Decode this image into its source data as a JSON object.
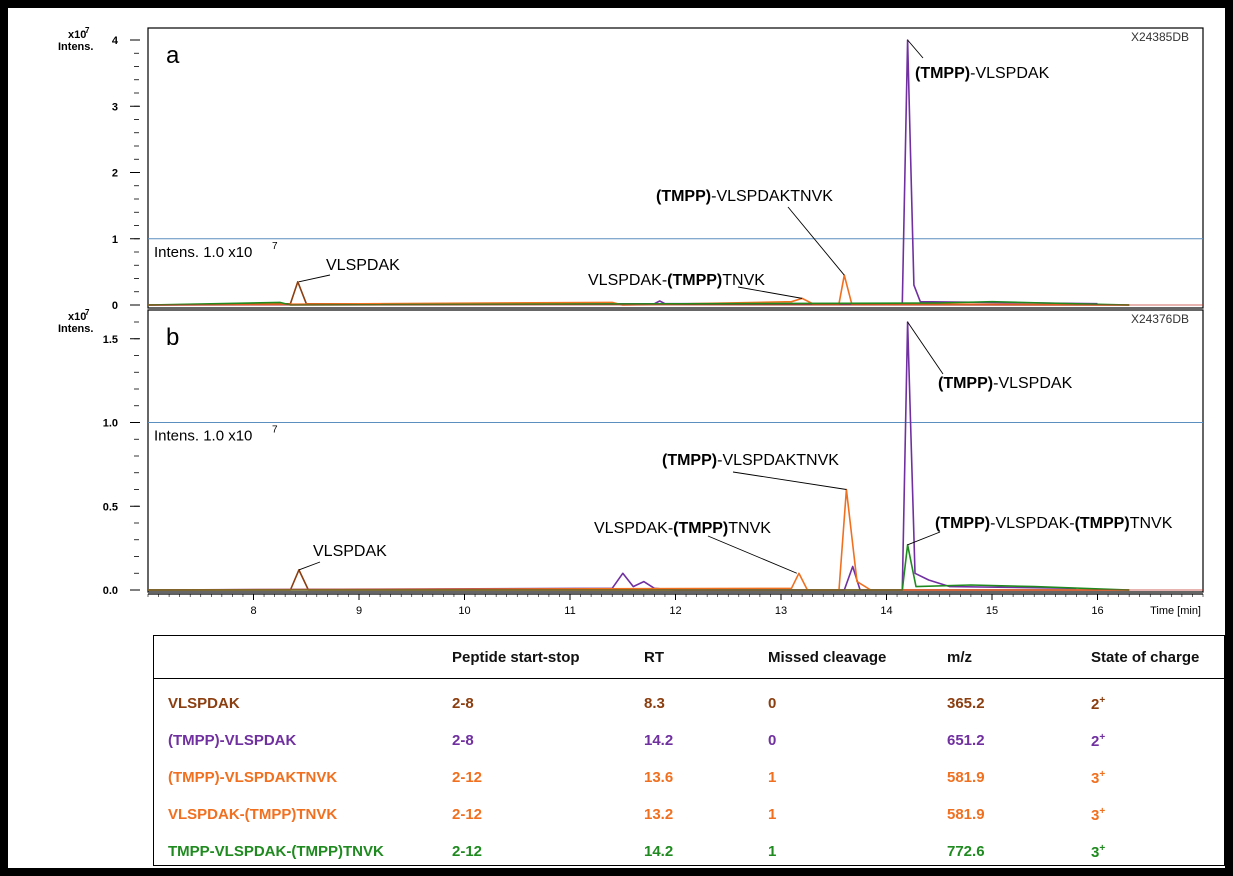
{
  "colors": {
    "brown": "#8b3e10",
    "purple": "#7030a0",
    "orange": "#f07020",
    "green": "#1f8a1f",
    "reference_line": "#5b8fbf"
  },
  "chart_data": [
    {
      "type": "line",
      "panel_label": "a",
      "sample_id": "X24385DB",
      "ylabel": "Intens.",
      "y_multiplier": "x10",
      "y_multiplier_exp": "7",
      "ylim": [
        0,
        4.0
      ],
      "yticks": [
        "0",
        "1",
        "2",
        "3",
        "4"
      ],
      "reference_line": {
        "value": 1.0,
        "label": "Intens. 1.0 x10",
        "label_exp": "7"
      },
      "series": [
        {
          "color_key": "brown",
          "points": [
            [
              7.0,
              0.0
            ],
            [
              8.35,
              0.02
            ],
            [
              8.42,
              0.35
            ],
            [
              8.5,
              0.02
            ],
            [
              16.3,
              0.0
            ]
          ]
        },
        {
          "color_key": "purple",
          "points": [
            [
              7.0,
              0.0
            ],
            [
              11.8,
              0.02
            ],
            [
              11.85,
              0.06
            ],
            [
              11.9,
              0.02
            ],
            [
              14.15,
              0.02
            ],
            [
              14.2,
              4.0
            ],
            [
              14.26,
              0.3
            ],
            [
              14.32,
              0.05
            ],
            [
              16.0,
              0.02
            ]
          ]
        },
        {
          "color_key": "orange",
          "points": [
            [
              7.0,
              0.0
            ],
            [
              11.4,
              0.04
            ],
            [
              11.5,
              0.0
            ],
            [
              13.1,
              0.05
            ],
            [
              13.2,
              0.1
            ],
            [
              13.3,
              0.02
            ],
            [
              13.55,
              0.02
            ],
            [
              13.6,
              0.45
            ],
            [
              13.67,
              0.02
            ],
            [
              16.3,
              0.0
            ]
          ]
        },
        {
          "color_key": "green",
          "points": [
            [
              7.0,
              0.0
            ],
            [
              8.25,
              0.04
            ],
            [
              8.35,
              0.0
            ],
            [
              14.5,
              0.03
            ],
            [
              15.0,
              0.05
            ],
            [
              15.5,
              0.03
            ],
            [
              16.3,
              0.0
            ]
          ]
        }
      ],
      "annotations": [
        {
          "parts": [
            [
              "VLSPDAK",
              false
            ]
          ],
          "x": 8.43,
          "y": 0.35
        },
        {
          "parts": [
            [
              "VLSPDAK-",
              false
            ],
            [
              "(TMPP)",
              true
            ],
            [
              "TNVK",
              false
            ]
          ],
          "x": 13.2,
          "y": 0.1
        },
        {
          "parts": [
            [
              "(TMPP)",
              true
            ],
            [
              "-VLSPDAKTNVK",
              false
            ]
          ],
          "x": 13.6,
          "y": 0.45
        },
        {
          "parts": [
            [
              "(TMPP)",
              true
            ],
            [
              "-VLSPDAK",
              false
            ]
          ],
          "x": 14.2,
          "y": 4.0
        }
      ]
    },
    {
      "type": "line",
      "panel_label": "b",
      "sample_id": "X24376DB",
      "ylabel": "Intens.",
      "y_multiplier": "x10",
      "y_multiplier_exp": "7",
      "ylim": [
        0,
        1.6
      ],
      "yticks": [
        "0.0",
        "0.5",
        "1.0",
        "1.5"
      ],
      "reference_line": {
        "value": 1.0,
        "label": "Intens. 1.0 x10",
        "label_exp": "7"
      },
      "xlabel": "Time [min]",
      "xlim": [
        7.0,
        17.0
      ],
      "xticks": [
        "8",
        "9",
        "10",
        "11",
        "12",
        "13",
        "14",
        "15",
        "16"
      ],
      "series": [
        {
          "color_key": "brown",
          "points": [
            [
              7.0,
              0.0
            ],
            [
              8.35,
              0.0
            ],
            [
              8.43,
              0.12
            ],
            [
              8.52,
              0.0
            ],
            [
              16.3,
              0.0
            ]
          ]
        },
        {
          "color_key": "purple",
          "points": [
            [
              7.0,
              0.0
            ],
            [
              11.4,
              0.01
            ],
            [
              11.5,
              0.1
            ],
            [
              11.6,
              0.02
            ],
            [
              11.7,
              0.05
            ],
            [
              11.8,
              0.01
            ],
            [
              12.0,
              0.0
            ],
            [
              13.6,
              0.0
            ],
            [
              13.68,
              0.14
            ],
            [
              13.75,
              0.0
            ],
            [
              14.15,
              0.0
            ],
            [
              14.2,
              1.6
            ],
            [
              14.27,
              0.1
            ],
            [
              14.4,
              0.06
            ],
            [
              14.6,
              0.02
            ],
            [
              15.8,
              0.01
            ]
          ]
        },
        {
          "color_key": "orange",
          "points": [
            [
              7.0,
              0.0
            ],
            [
              13.1,
              0.01
            ],
            [
              13.17,
              0.1
            ],
            [
              13.25,
              0.0
            ],
            [
              13.55,
              0.0
            ],
            [
              13.62,
              0.6
            ],
            [
              13.72,
              0.05
            ],
            [
              13.85,
              0.0
            ],
            [
              16.3,
              0.0
            ]
          ]
        },
        {
          "color_key": "green",
          "points": [
            [
              7.0,
              0.0
            ],
            [
              14.15,
              0.0
            ],
            [
              14.2,
              0.27
            ],
            [
              14.28,
              0.02
            ],
            [
              14.8,
              0.03
            ],
            [
              15.4,
              0.02
            ],
            [
              16.3,
              0.0
            ]
          ]
        }
      ],
      "annotations": [
        {
          "parts": [
            [
              "VLSPDAK",
              false
            ]
          ],
          "x": 8.43,
          "y": 0.12
        },
        {
          "parts": [
            [
              "VLSPDAK-",
              false
            ],
            [
              "(TMPP)",
              true
            ],
            [
              "TNVK",
              false
            ]
          ],
          "x": 13.15,
          "y": 0.1
        },
        {
          "parts": [
            [
              "(TMPP)",
              true
            ],
            [
              "-VLSPDAKTNVK",
              false
            ]
          ],
          "x": 13.62,
          "y": 0.6
        },
        {
          "parts": [
            [
              "(TMPP)",
              true
            ],
            [
              "-VLSPDAK",
              false
            ]
          ],
          "x": 14.2,
          "y": 1.6
        },
        {
          "parts": [
            [
              "(TMPP)",
              true
            ],
            [
              "-VLSPDAK-",
              false
            ],
            [
              "(TMPP)",
              true
            ],
            [
              "TNVK",
              false
            ]
          ],
          "x": 14.2,
          "y": 0.27
        }
      ]
    }
  ],
  "table": {
    "headers": [
      "",
      "Peptide start-stop",
      "RT",
      "Missed cleavage",
      "m/z",
      "State of charge"
    ],
    "rows": [
      {
        "color_key": "brown",
        "cells": [
          "VLSPDAK",
          "2-8",
          "8.3",
          "0",
          "365.2",
          "2"
        ],
        "charge_sup": "+"
      },
      {
        "color_key": "purple",
        "cells": [
          "(TMPP)-VLSPDAK",
          "2-8",
          "14.2",
          "0",
          "651.2",
          "2"
        ],
        "charge_sup": "+"
      },
      {
        "color_key": "orange",
        "cells": [
          "(TMPP)-VLSPDAKTNVK",
          "2-12",
          "13.6",
          "1",
          "581.9",
          "3"
        ],
        "charge_sup": "+"
      },
      {
        "color_key": "orange",
        "cells": [
          "VLSPDAK-(TMPP)TNVK",
          "2-12",
          "13.2",
          "1",
          "581.9",
          "3"
        ],
        "charge_sup": "+"
      },
      {
        "color_key": "green",
        "cells": [
          "TMPP-VLSPDAK-(TMPP)TNVK",
          "2-12",
          "14.2",
          "1",
          "772.6",
          "3"
        ],
        "charge_sup": "+"
      }
    ]
  }
}
